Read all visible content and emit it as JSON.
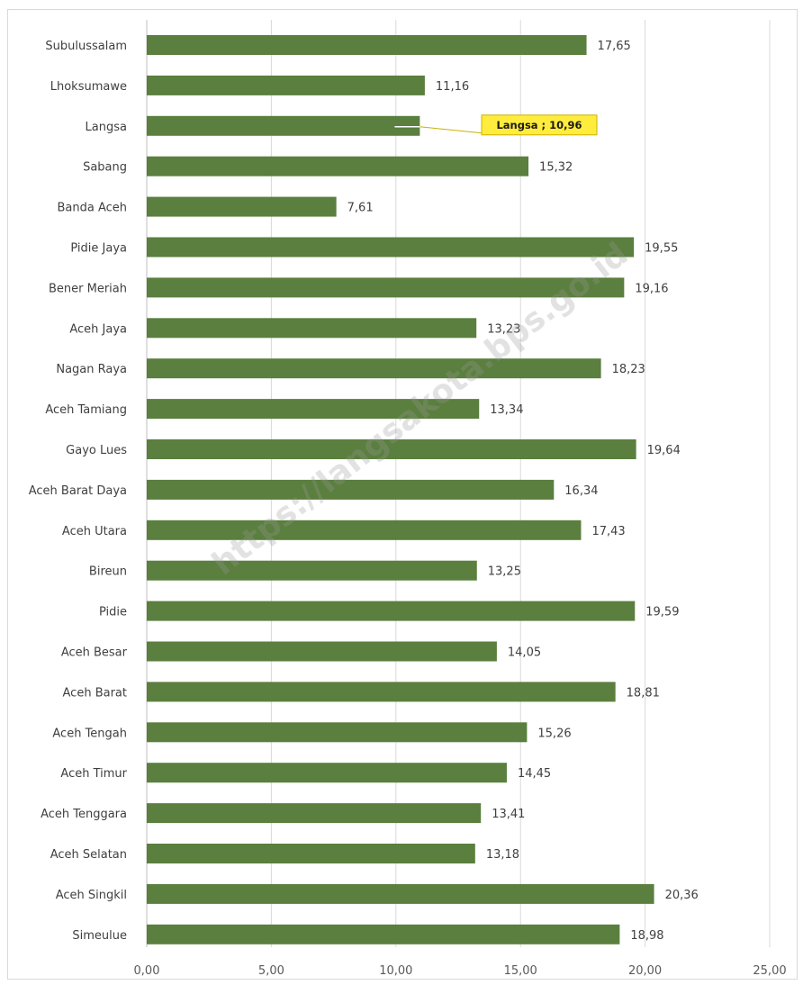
{
  "chart_data": {
    "type": "bar",
    "orientation": "horizontal",
    "categories": [
      "Subulussalam",
      "Lhoksumawe",
      "Langsa",
      "Sabang",
      "Banda Aceh",
      "Pidie Jaya",
      "Bener Meriah",
      "Aceh Jaya",
      "Nagan Raya",
      "Aceh Tamiang",
      "Gayo Lues",
      "Aceh Barat Daya",
      "Aceh Utara",
      "Bireun",
      "Pidie",
      "Aceh Besar",
      "Aceh Barat",
      "Aceh Tengah",
      "Aceh Timur",
      "Aceh Tenggara",
      "Aceh Selatan",
      "Aceh Singkil",
      "Simeulue"
    ],
    "values": [
      17.65,
      11.16,
      10.96,
      15.32,
      7.61,
      19.55,
      19.16,
      13.23,
      18.23,
      13.34,
      19.64,
      16.34,
      17.43,
      13.25,
      19.59,
      14.05,
      18.81,
      15.26,
      14.45,
      13.41,
      13.18,
      20.36,
      18.98
    ],
    "value_labels": [
      "17,65",
      "11,16",
      "",
      "15,32",
      "7,61",
      "19,55",
      "19,16",
      "13,23",
      "18,23",
      "13,34",
      "19,64",
      "16,34",
      "17,43",
      "13,25",
      "19,59",
      "14,05",
      "18,81",
      "15,26",
      "14,45",
      "13,41",
      "13,18",
      "20,36",
      "18,98"
    ],
    "xlim": [
      0,
      25
    ],
    "xticks": [
      0,
      5,
      10,
      15,
      20,
      25
    ],
    "xtick_labels": [
      "0,00",
      "5,00",
      "10,00",
      "15,00",
      "20,00",
      "25,00"
    ],
    "grid": "vertical",
    "title": "",
    "xlabel": "",
    "ylabel": "",
    "bar_color": "#5a7f3e",
    "highlight": {
      "category": "Langsa",
      "label": "Langsa  ; 10,96",
      "color": "#ffec3d",
      "border": "#c9b200"
    }
  },
  "watermark": "https://langsakota.bps.go.id"
}
